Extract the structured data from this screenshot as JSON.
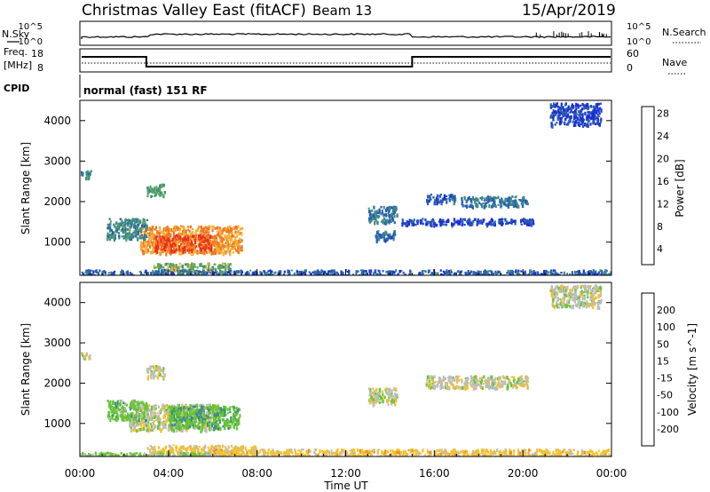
{
  "header": {
    "title": "Christmas Valley East (fitACF)",
    "beam": "Beam 13",
    "date": "15/Apr/2019"
  },
  "strips": {
    "nsky_label": "N.Sky",
    "nsearch_label": "N.Search",
    "nsky_ticks": [
      "10^5",
      "10^0"
    ],
    "nsearch_ticks": [
      "10^5",
      "10^0"
    ],
    "freq_label": "Freq.",
    "freq_unit": "[MHz]",
    "freq_ticks": [
      "18",
      "8"
    ],
    "nave_label": "Nave",
    "nave_ticks": [
      "60",
      "0"
    ],
    "cpid_label": "CPID",
    "cpid_value": "normal (fast) 151 RF"
  },
  "axis": {
    "x_ticks": [
      "00:00",
      "04:00",
      "08:00",
      "12:00",
      "16:00",
      "20:00",
      "00:00"
    ],
    "x_label": "Time UT",
    "y_ticks": [
      "1000",
      "2000",
      "3000",
      "4000"
    ],
    "y_label": "Slant Range [km]"
  },
  "power_colorbar": {
    "label": "Power [dB]",
    "ticks": [
      "4",
      "8",
      "12",
      "16",
      "20",
      "24",
      "28"
    ],
    "colors": [
      "#1c2fd6",
      "#2a5fb0",
      "#3f8a86",
      "#5aa860",
      "#f2b23a",
      "#f07a23",
      "#e8311f"
    ]
  },
  "velocity_colorbar": {
    "label": "Velocity [m s^-1]",
    "ticks": [
      "200",
      "100",
      "50",
      "15",
      "-15",
      "-50",
      "-100",
      "-200"
    ],
    "colors": [
      "#1c2fd6",
      "#2a5fb0",
      "#3f8a86",
      "#66c534",
      "#bdbdbd",
      "#f6c02a",
      "#f08a22",
      "#ee5320",
      "#e01b1b"
    ]
  },
  "chart_data": [
    {
      "type": "heatmap",
      "title": "Power",
      "x_range_hours": [
        0,
        24
      ],
      "y_range_km": [
        180,
        4500
      ],
      "regions": [
        {
          "t0": 2.7,
          "t1": 7.3,
          "r0": 750,
          "r1": 1420,
          "value_db": 22
        },
        {
          "t0": 3.3,
          "t1": 5.9,
          "r0": 800,
          "r1": 1200,
          "value_db": 27
        },
        {
          "t0": 1.2,
          "t1": 3.0,
          "r0": 1100,
          "r1": 1600,
          "value_db": 12
        },
        {
          "t0": 3.0,
          "t1": 3.8,
          "r0": 2150,
          "r1": 2450,
          "value_db": 14
        },
        {
          "t0": 0.0,
          "t1": 0.5,
          "r0": 2600,
          "r1": 2780,
          "value_db": 12
        },
        {
          "t0": 3.3,
          "t1": 6.8,
          "r0": 250,
          "r1": 500,
          "value_db": 16
        },
        {
          "t0": 0.0,
          "t1": 24.0,
          "r0": 180,
          "r1": 330,
          "value_db": 8
        },
        {
          "t0": 13.0,
          "t1": 14.3,
          "r0": 1500,
          "r1": 1900,
          "value_db": 10
        },
        {
          "t0": 13.3,
          "t1": 14.2,
          "r0": 1050,
          "r1": 1300,
          "value_db": 9
        },
        {
          "t0": 15.6,
          "t1": 17.0,
          "r0": 2000,
          "r1": 2200,
          "value_db": 8
        },
        {
          "t0": 17.2,
          "t1": 20.2,
          "r0": 1900,
          "r1": 2150,
          "value_db": 10
        },
        {
          "t0": 14.5,
          "t1": 20.5,
          "r0": 1450,
          "r1": 1600,
          "value_db": 6
        },
        {
          "t0": 21.2,
          "t1": 23.5,
          "r0": 3900,
          "r1": 4450,
          "value_db": 6
        }
      ]
    },
    {
      "type": "heatmap",
      "title": "Velocity",
      "x_range_hours": [
        0,
        24
      ],
      "y_range_km": [
        180,
        4500
      ],
      "regions": [
        {
          "t0": 2.2,
          "t1": 6.2,
          "r0": 850,
          "r1": 1500,
          "value_ms": 0
        },
        {
          "t0": 1.2,
          "t1": 3.0,
          "r0": 1100,
          "r1": 1600,
          "value_ms": 30
        },
        {
          "t0": 4.0,
          "t1": 7.2,
          "r0": 900,
          "r1": 1450,
          "value_ms": 40
        },
        {
          "t0": 3.0,
          "t1": 3.8,
          "r0": 2150,
          "r1": 2450,
          "value_ms": 0
        },
        {
          "t0": 0.0,
          "t1": 0.5,
          "r0": 2600,
          "r1": 2780,
          "value_ms": 0
        },
        {
          "t0": 3.0,
          "t1": 8.0,
          "r0": 250,
          "r1": 480,
          "value_ms": -25
        },
        {
          "t0": 6.0,
          "t1": 24.0,
          "r0": 180,
          "r1": 380,
          "value_ms": -30
        },
        {
          "t0": 0.0,
          "t1": 6.0,
          "r0": 180,
          "r1": 300,
          "value_ms": 20
        },
        {
          "t0": 13.0,
          "t1": 14.3,
          "r0": 1500,
          "r1": 1900,
          "value_ms": 0
        },
        {
          "t0": 15.6,
          "t1": 20.2,
          "r0": 1900,
          "r1": 2200,
          "value_ms": 0
        },
        {
          "t0": 21.2,
          "t1": 23.5,
          "r0": 3900,
          "r1": 4450,
          "value_ms": 0
        }
      ]
    }
  ]
}
